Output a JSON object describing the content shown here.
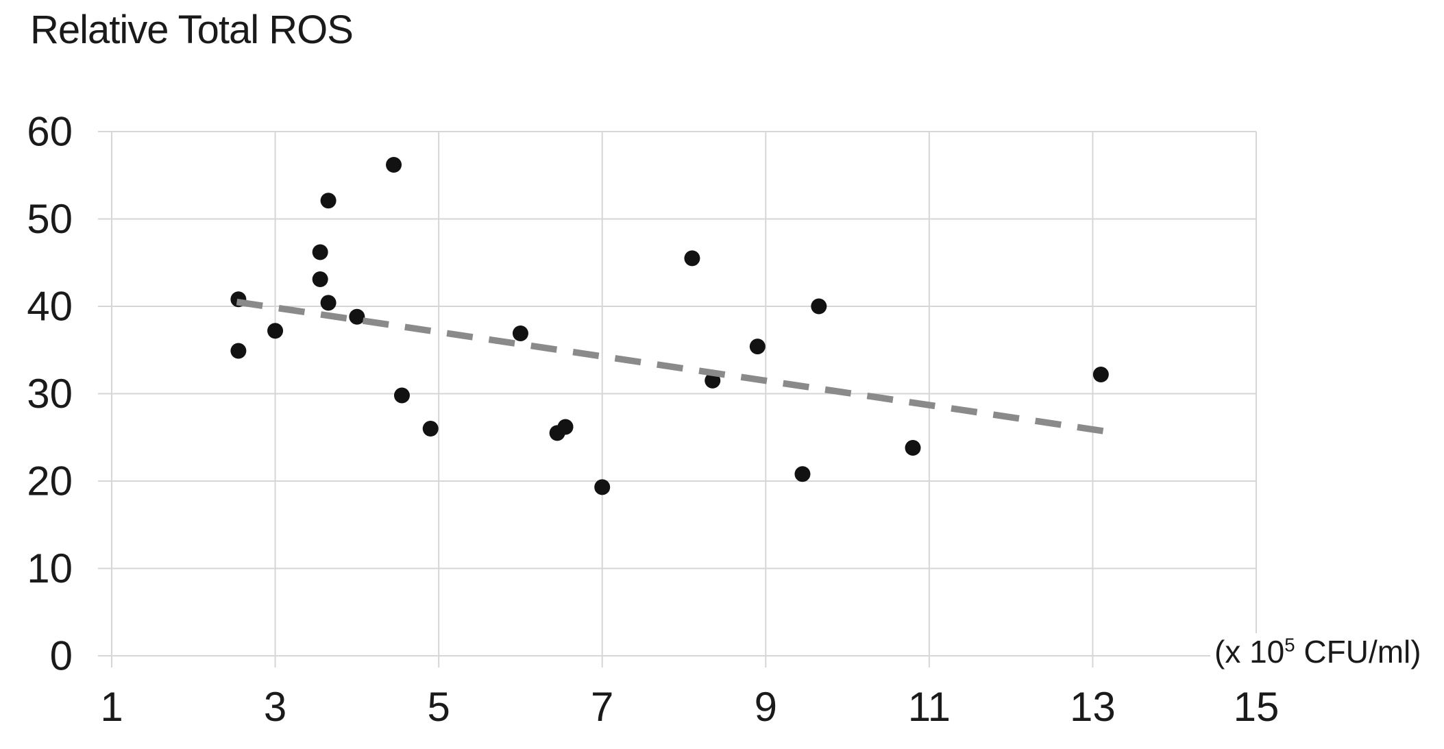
{
  "title": "Relative Total ROS",
  "x_unit_label": {
    "prefix": "(x 10",
    "sup": "5",
    "suffix": " CFU/ml)"
  },
  "chart_data": {
    "type": "scatter",
    "title": "Relative Total ROS",
    "xlabel": "(x 10^5 CFU/ml)",
    "ylabel": "Relative Total ROS",
    "xlim": [
      1,
      15
    ],
    "ylim": [
      0,
      60
    ],
    "x_ticks": [
      1,
      3,
      5,
      7,
      9,
      11,
      13,
      15
    ],
    "y_ticks": [
      0,
      10,
      20,
      30,
      40,
      50,
      60
    ],
    "grid": true,
    "legend_position": "none",
    "marker_color": "#121212",
    "gridline_color": "#d6d6d6",
    "points": [
      [
        2.55,
        40.8
      ],
      [
        2.55,
        34.9
      ],
      [
        3.0,
        37.2
      ],
      [
        3.55,
        46.2
      ],
      [
        3.55,
        43.1
      ],
      [
        3.65,
        52.1
      ],
      [
        3.65,
        40.4
      ],
      [
        4.0,
        38.8
      ],
      [
        4.45,
        56.2
      ],
      [
        4.55,
        29.8
      ],
      [
        4.9,
        26.0
      ],
      [
        6.0,
        36.9
      ],
      [
        6.45,
        25.5
      ],
      [
        6.55,
        26.2
      ],
      [
        7.0,
        19.3
      ],
      [
        8.1,
        45.5
      ],
      [
        8.35,
        31.5
      ],
      [
        8.9,
        35.4
      ],
      [
        9.45,
        20.8
      ],
      [
        9.65,
        40.0
      ],
      [
        10.8,
        23.8
      ],
      [
        13.1,
        32.2
      ]
    ],
    "trendline": {
      "type": "linear",
      "style": "dashed",
      "color": "#8a8a8a",
      "x_start": 2.53,
      "y_start": 40.5,
      "x_end": 13.15,
      "y_end": 25.7
    }
  }
}
